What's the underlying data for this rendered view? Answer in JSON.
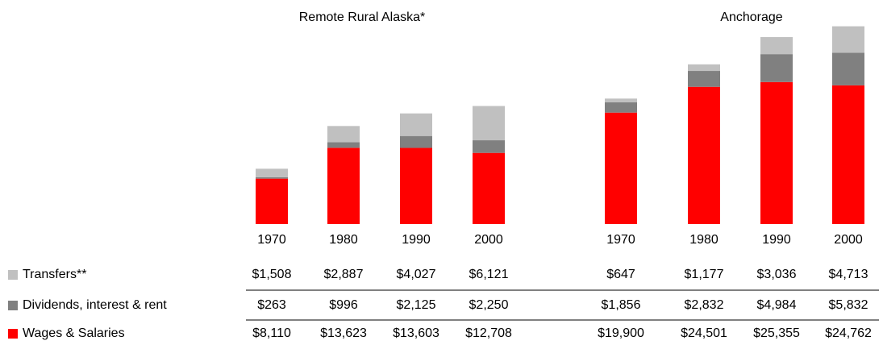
{
  "chart_data": [
    {
      "type": "bar",
      "stacked": true,
      "title": "Remote Rural Alaska*",
      "categories": [
        "1970",
        "1980",
        "1990",
        "2000"
      ],
      "ylim": [
        0,
        40000
      ],
      "series": [
        {
          "name": "Transfers**",
          "color": "#c0c0c0",
          "values": [
            1508,
            2887,
            4027,
            6121
          ],
          "value_labels": [
            "$1,508",
            "$2,887",
            "$4,027",
            "$6,121"
          ]
        },
        {
          "name": "Dividends, interest & rent",
          "color": "#808080",
          "values": [
            263,
            996,
            2125,
            2250
          ],
          "value_labels": [
            "$263",
            "$996",
            "$2,125",
            "$2,250"
          ]
        },
        {
          "name": "Wages & Salaries",
          "color": "#ff0000",
          "values": [
            8110,
            13623,
            13603,
            12708
          ],
          "value_labels": [
            "$8,110",
            "$13,623",
            "$13,603",
            "$12,708"
          ]
        }
      ]
    },
    {
      "type": "bar",
      "stacked": true,
      "title": "Anchorage",
      "categories": [
        "1970",
        "1980",
        "1990",
        "2000"
      ],
      "ylim": [
        0,
        40000
      ],
      "series": [
        {
          "color": "#c0c0c0",
          "values": [
            647,
            1177,
            3036,
            4713
          ],
          "value_labels": [
            "$647",
            "$1,177",
            "$3,036",
            "$4,713"
          ]
        },
        {
          "color": "#808080",
          "values": [
            1856,
            2832,
            4984,
            5832
          ],
          "value_labels": [
            "$1,856",
            "$2,832",
            "$4,984",
            "$5,832"
          ]
        },
        {
          "color": "#ff0000",
          "values": [
            19900,
            24501,
            25355,
            24762
          ],
          "value_labels": [
            "$19,900",
            "$24,501",
            "$25,355",
            "$24,762"
          ]
        }
      ]
    }
  ]
}
